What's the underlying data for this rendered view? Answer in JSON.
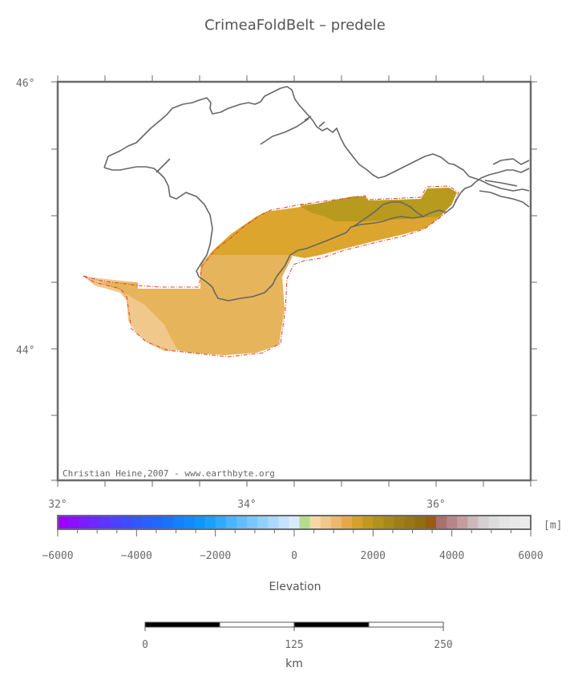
{
  "title": "CrimeaFoldBelt – predele",
  "map": {
    "lat_labels": [
      "46°",
      "44°"
    ],
    "lon_labels": [
      "32°",
      "34°",
      "36°"
    ],
    "credit": "Christian Heine,2007 - www.earthbyte.org"
  },
  "colorbar": {
    "unit": "[m]",
    "tick_labels": [
      "−6000",
      "−4000",
      "−2000",
      "0",
      "2000",
      "4000",
      "6000"
    ],
    "min": -6000,
    "max": 6000,
    "title": "Elevation",
    "colors": [
      "#9b00ff",
      "#8a10ff",
      "#7a1eff",
      "#6b2aff",
      "#5c36ff",
      "#4d42ff",
      "#404cff",
      "#3556ff",
      "#2a60ff",
      "#2268ff",
      "#1a72ff",
      "#1480ff",
      "#108aff",
      "#0e96ff",
      "#1aa0ff",
      "#30aaff",
      "#4ab4ff",
      "#62bcff",
      "#7ac6ff",
      "#92d0ff",
      "#aad8ff",
      "#c4e2ff",
      "#d8ecff",
      "#b4dc8c",
      "#f6d8a8",
      "#f0c88c",
      "#ecb86e",
      "#e4aa4a",
      "#d4a22a",
      "#c09a1e",
      "#b0921c",
      "#a8881a",
      "#9e7e18",
      "#967616",
      "#906e14",
      "#9a5c10",
      "#a8706e",
      "#b8868a",
      "#c49e9e",
      "#ccb8b8",
      "#d4d0d0",
      "#dcdcdc",
      "#e4e4e4",
      "#e8e8e8",
      "#ececec"
    ]
  },
  "scalebar": {
    "labels": [
      "0",
      "125",
      "250"
    ],
    "unit": "km"
  },
  "colors": {
    "frame": "#6a6a6a",
    "coast": "#666666",
    "outline": "#d84030",
    "light_tan": "#f0c88c",
    "tan": "#e6b45a",
    "gold": "#dca62e",
    "olive": "#b89a1e"
  }
}
